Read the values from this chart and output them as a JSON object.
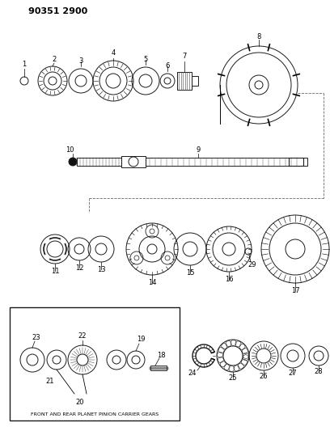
{
  "title": "90351 2900",
  "bg_color": "#ffffff",
  "line_color": "#1a1a1a",
  "fig_width": 4.08,
  "fig_height": 5.33,
  "dpi": 100
}
